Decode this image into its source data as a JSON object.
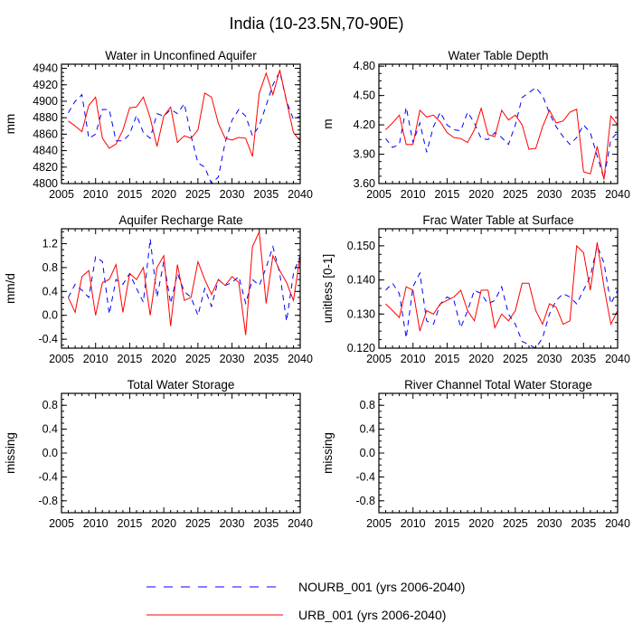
{
  "title": "India (10-23.5N,70-90E)",
  "colors": {
    "nourb": "#0000ff",
    "urb": "#ff0000",
    "axis": "#000000"
  },
  "legend": [
    {
      "label": "NOURB_001 (yrs 2006-2040)",
      "color": "#0000ff",
      "dash": true
    },
    {
      "label": "URB_001 (yrs 2006-2040)",
      "color": "#ff0000",
      "dash": false
    }
  ],
  "chart_data": [
    {
      "type": "line",
      "title": "Water in Unconfined Aquifer",
      "ylabel": "mm",
      "xlim": [
        2005,
        2040
      ],
      "ylim": [
        4800,
        4945
      ],
      "xticks": [
        2005,
        2010,
        2015,
        2020,
        2025,
        2030,
        2035,
        2040
      ],
      "yticks": [
        4800,
        4820,
        4840,
        4860,
        4880,
        4900,
        4920,
        4940
      ],
      "ytick_labels": [
        "4800",
        "4820",
        "4840",
        "4860",
        "4880",
        "4900",
        "4920",
        "4940"
      ],
      "x": [
        2006,
        2007,
        2008,
        2009,
        2010,
        2011,
        2012,
        2013,
        2014,
        2015,
        2016,
        2017,
        2018,
        2019,
        2020,
        2021,
        2022,
        2023,
        2024,
        2025,
        2026,
        2027,
        2028,
        2029,
        2030,
        2031,
        2032,
        2033,
        2034,
        2035,
        2036,
        2037,
        2038,
        2039,
        2040
      ],
      "series": [
        {
          "name": "NOURB_001",
          "values": [
            4886,
            4900,
            4908,
            4855,
            4860,
            4890,
            4890,
            4852,
            4852,
            4860,
            4883,
            4862,
            4855,
            4885,
            4882,
            4890,
            4885,
            4897,
            4858,
            4825,
            4820,
            4800,
            4808,
            4850,
            4877,
            4890,
            4882,
            4858,
            4870,
            4895,
            4920,
            4936,
            4900,
            4878,
            4882
          ]
        },
        {
          "name": "URB_001",
          "values": [
            4876,
            4870,
            4863,
            4895,
            4905,
            4855,
            4843,
            4848,
            4865,
            4892,
            4893,
            4905,
            4880,
            4845,
            4882,
            4893,
            4850,
            4858,
            4855,
            4865,
            4910,
            4905,
            4873,
            4855,
            4853,
            4856,
            4855,
            4833,
            4910,
            4934,
            4908,
            4938,
            4900,
            4862,
            4852
          ]
        }
      ]
    },
    {
      "type": "line",
      "title": "Water Table Depth",
      "ylabel": "m",
      "xlim": [
        2005,
        2040
      ],
      "ylim": [
        3.6,
        4.82
      ],
      "xticks": [
        2005,
        2010,
        2015,
        2020,
        2025,
        2030,
        2035,
        2040
      ],
      "yticks": [
        3.6,
        3.9,
        4.2,
        4.5,
        4.8
      ],
      "ytick_labels": [
        "3.60",
        "3.90",
        "4.20",
        "4.50",
        "4.80"
      ],
      "x": [
        2006,
        2007,
        2008,
        2009,
        2010,
        2011,
        2012,
        2013,
        2014,
        2015,
        2016,
        2017,
        2018,
        2019,
        2020,
        2021,
        2022,
        2023,
        2024,
        2025,
        2026,
        2027,
        2028,
        2029,
        2030,
        2031,
        2032,
        2033,
        2034,
        2035,
        2036,
        2037,
        2038,
        2039,
        2040
      ],
      "series": [
        {
          "name": "NOURB_001",
          "values": [
            4.06,
            3.97,
            4.0,
            4.38,
            4.02,
            4.22,
            3.92,
            4.18,
            4.33,
            4.2,
            4.15,
            4.14,
            4.33,
            4.22,
            4.06,
            4.05,
            4.12,
            4.07,
            4.0,
            4.2,
            4.48,
            4.53,
            4.58,
            4.5,
            4.32,
            4.18,
            4.08,
            4.0,
            4.07,
            4.2,
            4.12,
            3.88,
            3.65,
            4.05,
            4.12
          ]
        },
        {
          "name": "URB_001",
          "values": [
            4.15,
            4.22,
            4.3,
            4.0,
            4.0,
            4.35,
            4.28,
            4.3,
            4.23,
            4.12,
            4.07,
            4.06,
            4.02,
            4.15,
            4.37,
            4.1,
            4.08,
            4.35,
            4.25,
            4.3,
            4.2,
            3.95,
            3.96,
            4.18,
            4.35,
            4.22,
            4.24,
            4.33,
            4.36,
            3.72,
            3.7,
            3.98,
            3.64,
            4.29,
            4.2
          ]
        }
      ]
    },
    {
      "type": "line",
      "title": "Aquifer Recharge Rate",
      "ylabel": "mm/d",
      "xlim": [
        2005,
        2040
      ],
      "ylim": [
        -0.55,
        1.45
      ],
      "xticks": [
        2005,
        2010,
        2015,
        2020,
        2025,
        2030,
        2035,
        2040
      ],
      "yticks": [
        -0.4,
        0.0,
        0.4,
        0.8,
        1.2
      ],
      "ytick_labels": [
        "-0.4",
        "0.0",
        "0.4",
        "0.8",
        "1.2"
      ],
      "x": [
        2006,
        2007,
        2008,
        2009,
        2010,
        2011,
        2012,
        2013,
        2014,
        2015,
        2016,
        2017,
        2018,
        2019,
        2020,
        2021,
        2022,
        2023,
        2024,
        2025,
        2026,
        2027,
        2028,
        2029,
        2030,
        2031,
        2032,
        2033,
        2034,
        2035,
        2036,
        2037,
        2038,
        2039,
        2040
      ],
      "series": [
        {
          "name": "NOURB_001",
          "values": [
            0.3,
            0.52,
            0.42,
            0.3,
            0.98,
            0.9,
            0.02,
            0.6,
            0.52,
            0.7,
            0.45,
            0.22,
            1.28,
            0.3,
            0.9,
            0.2,
            0.7,
            0.4,
            0.3,
            0.0,
            0.45,
            0.15,
            0.6,
            0.5,
            0.55,
            0.65,
            0.2,
            0.6,
            0.5,
            0.8,
            1.15,
            0.7,
            -0.1,
            0.7,
            1.0
          ]
        },
        {
          "name": "URB_001",
          "values": [
            0.3,
            0.05,
            0.65,
            0.75,
            0.0,
            0.55,
            0.6,
            0.85,
            0.05,
            0.7,
            0.6,
            0.8,
            0.0,
            0.8,
            1.0,
            -0.18,
            0.85,
            0.25,
            0.3,
            0.9,
            0.6,
            0.35,
            0.6,
            0.5,
            0.65,
            0.55,
            -0.33,
            1.15,
            1.4,
            0.2,
            1.0,
            0.75,
            0.55,
            0.25,
            1.0
          ]
        }
      ]
    },
    {
      "type": "line",
      "title": "Frac Water Table at Surface",
      "ylabel": "unitless [0-1]",
      "xlim": [
        2005,
        2040
      ],
      "ylim": [
        0.12,
        0.155
      ],
      "xticks": [
        2005,
        2010,
        2015,
        2020,
        2025,
        2030,
        2035,
        2040
      ],
      "yticks": [
        0.12,
        0.13,
        0.14,
        0.15
      ],
      "ytick_labels": [
        "0.120",
        "0.130",
        "0.140",
        "0.150"
      ],
      "x": [
        2006,
        2007,
        2008,
        2009,
        2010,
        2011,
        2012,
        2013,
        2014,
        2015,
        2016,
        2017,
        2018,
        2019,
        2020,
        2021,
        2022,
        2023,
        2024,
        2025,
        2026,
        2027,
        2028,
        2029,
        2030,
        2031,
        2032,
        2033,
        2034,
        2035,
        2036,
        2037,
        2038,
        2039,
        2040
      ],
      "series": [
        {
          "name": "NOURB_001",
          "values": [
            0.137,
            0.139,
            0.136,
            0.123,
            0.138,
            0.142,
            0.128,
            0.127,
            0.133,
            0.135,
            0.134,
            0.126,
            0.131,
            0.137,
            0.136,
            0.133,
            0.134,
            0.138,
            0.13,
            0.127,
            0.122,
            0.121,
            0.12,
            0.123,
            0.13,
            0.134,
            0.136,
            0.135,
            0.133,
            0.137,
            0.141,
            0.15,
            0.145,
            0.133,
            0.137
          ]
        },
        {
          "name": "URB_001",
          "values": [
            0.133,
            0.131,
            0.129,
            0.138,
            0.137,
            0.125,
            0.131,
            0.13,
            0.133,
            0.134,
            0.135,
            0.137,
            0.131,
            0.128,
            0.137,
            0.137,
            0.126,
            0.13,
            0.128,
            0.131,
            0.139,
            0.139,
            0.131,
            0.127,
            0.133,
            0.132,
            0.127,
            0.128,
            0.15,
            0.148,
            0.137,
            0.151,
            0.138,
            0.127,
            0.131
          ]
        }
      ]
    },
    {
      "type": "line",
      "title": "Total Water Storage",
      "ylabel": "missing",
      "xlim": [
        2005,
        2040
      ],
      "ylim": [
        -1,
        1
      ],
      "xticks": [
        2005,
        2010,
        2015,
        2020,
        2025,
        2030,
        2035,
        2040
      ],
      "yticks": [
        -0.8,
        -0.4,
        0.0,
        0.4,
        0.8
      ],
      "ytick_labels": [
        "-0.8",
        "-0.4",
        "0.0",
        "0.4",
        "0.8"
      ],
      "x": [],
      "series": []
    },
    {
      "type": "line",
      "title": "River Channel Total Water Storage",
      "ylabel": "missing",
      "xlim": [
        2005,
        2040
      ],
      "ylim": [
        -1,
        1
      ],
      "xticks": [
        2005,
        2010,
        2015,
        2020,
        2025,
        2030,
        2035,
        2040
      ],
      "yticks": [
        -0.8,
        -0.4,
        0.0,
        0.4,
        0.8
      ],
      "ytick_labels": [
        "-0.8",
        "-0.4",
        "0.0",
        "0.4",
        "0.8"
      ],
      "x": [],
      "series": []
    }
  ]
}
